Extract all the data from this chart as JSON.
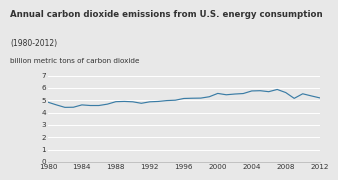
{
  "title": "Annual carbon dioxide emissions from U.S. energy consumption",
  "subtitle": "(1980-2012)",
  "ylabel": "billion metric tons of carbon dioxide",
  "background_color": "#e8e8e8",
  "plot_bg_color": "#e8e8e8",
  "line_color": "#3a7ca5",
  "ylim": [
    0,
    7
  ],
  "yticks": [
    0,
    1,
    2,
    3,
    4,
    5,
    6,
    7
  ],
  "xlim": [
    1980,
    2012
  ],
  "xticks": [
    1980,
    1984,
    1988,
    1992,
    1996,
    2000,
    2004,
    2008,
    2012
  ],
  "years": [
    1980,
    1981,
    1982,
    1983,
    1984,
    1985,
    1986,
    1987,
    1988,
    1989,
    1990,
    1991,
    1992,
    1993,
    1994,
    1995,
    1996,
    1997,
    1998,
    1999,
    2000,
    2001,
    2002,
    2003,
    2004,
    2005,
    2006,
    2007,
    2008,
    2009,
    2010,
    2011,
    2012
  ],
  "values": [
    4.84,
    4.62,
    4.42,
    4.43,
    4.62,
    4.57,
    4.57,
    4.68,
    4.88,
    4.9,
    4.87,
    4.75,
    4.87,
    4.9,
    4.97,
    5.0,
    5.14,
    5.16,
    5.17,
    5.28,
    5.55,
    5.44,
    5.5,
    5.54,
    5.75,
    5.77,
    5.69,
    5.87,
    5.62,
    5.15,
    5.52,
    5.35,
    5.19
  ],
  "title_fontsize": 6.2,
  "subtitle_fontsize": 5.5,
  "ylabel_fontsize": 5.2,
  "tick_fontsize": 5.2,
  "grid_color": "#ffffff",
  "spine_color": "#bbbbbb",
  "text_color": "#333333"
}
